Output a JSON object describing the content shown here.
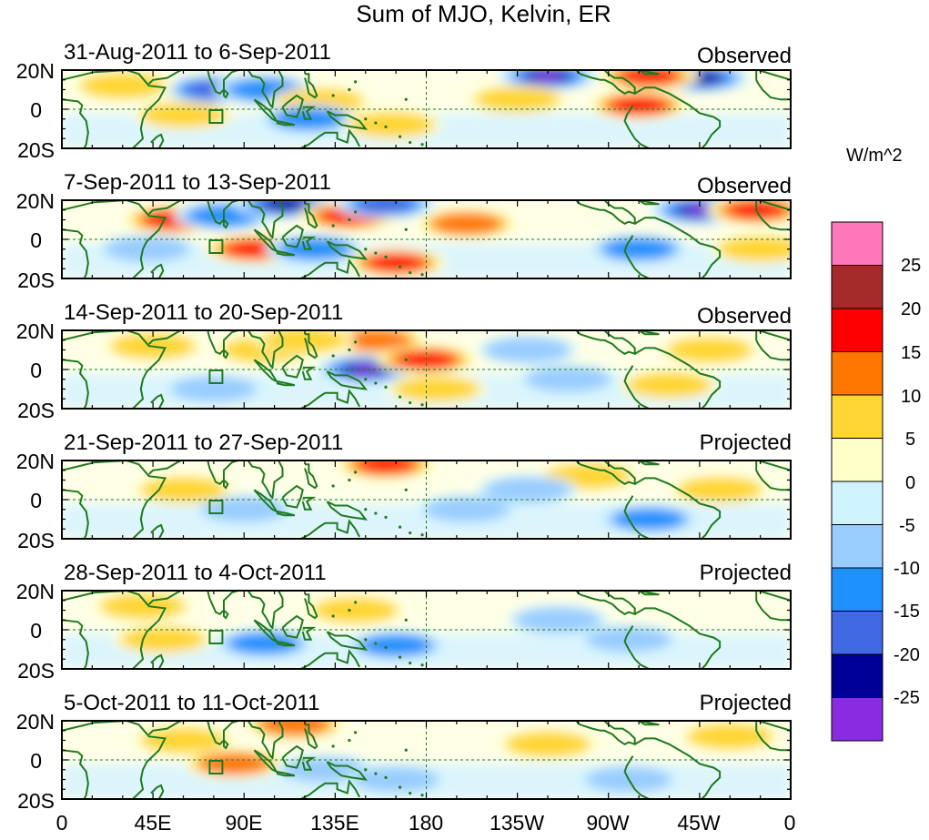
{
  "title": "Sum of MJO, Kelvin, ER",
  "panels": [
    {
      "date_range": "31-Aug-2011 to 6-Sep-2011",
      "status": "Observed"
    },
    {
      "date_range": "7-Sep-2011 to 13-Sep-2011",
      "status": "Observed"
    },
    {
      "date_range": "14-Sep-2011 to 20-Sep-2011",
      "status": "Observed"
    },
    {
      "date_range": "21-Sep-2011 to 27-Sep-2011",
      "status": "Projected"
    },
    {
      "date_range": "28-Sep-2011 to 4-Oct-2011",
      "status": "Projected"
    },
    {
      "date_range": "5-Oct-2011 to 11-Oct-2011",
      "status": "Projected"
    }
  ],
  "y_axis": {
    "labels": [
      "20N",
      "0",
      "20S"
    ]
  },
  "x_axis": {
    "labels": [
      "0",
      "45E",
      "90E",
      "135E",
      "180",
      "135W",
      "90W",
      "45W",
      "0"
    ]
  },
  "colorbar": {
    "units": "W/m^2",
    "labels": [
      "25",
      "20",
      "15",
      "10",
      "5",
      "0",
      "-5",
      "-10",
      "-15",
      "-20",
      "-25"
    ],
    "colors": [
      "#ff77bb",
      "#a52a2a",
      "#ff0000",
      "#ff7700",
      "#ffd633",
      "#ffffc8",
      "#d0f4ff",
      "#99ccff",
      "#1e90ff",
      "#4169e1",
      "#000099",
      "#8a2be2"
    ]
  },
  "chart_data": {
    "type": "heatmap",
    "title": "Sum of MJO, Kelvin, ER",
    "variable_units": "W/m^2",
    "contour_levels": [
      -25,
      -20,
      -15,
      -10,
      -5,
      0,
      5,
      10,
      15,
      20,
      25
    ],
    "lon_range": [
      0,
      360
    ],
    "lat_range": [
      -20,
      20
    ],
    "features": [
      [
        {
          "lon": 60,
          "lat": -3,
          "value": 8
        },
        {
          "lon": 75,
          "lat": 10,
          "value": -15
        },
        {
          "lon": 100,
          "lat": 10,
          "value": -10
        },
        {
          "lon": 128,
          "lat": 4,
          "value": 8
        },
        {
          "lon": 122,
          "lat": -5,
          "value": -12
        },
        {
          "lon": 163,
          "lat": -8,
          "value": 8
        },
        {
          "lon": 240,
          "lat": 17,
          "value": -25
        },
        {
          "lon": 285,
          "lat": 2,
          "value": 17
        },
        {
          "lon": 315,
          "lat": 16,
          "value": -22
        },
        {
          "lon": 290,
          "lat": 17,
          "value": 17
        },
        {
          "lon": 30,
          "lat": 12,
          "value": 8
        },
        {
          "lon": 225,
          "lat": 5,
          "value": 6
        }
      ],
      [
        {
          "lon": 55,
          "lat": 10,
          "value": 15
        },
        {
          "lon": 80,
          "lat": 12,
          "value": -12
        },
        {
          "lon": 110,
          "lat": 18,
          "value": -22
        },
        {
          "lon": 142,
          "lat": 12,
          "value": 15
        },
        {
          "lon": 95,
          "lat": -5,
          "value": 15
        },
        {
          "lon": 125,
          "lat": -5,
          "value": -12
        },
        {
          "lon": 165,
          "lat": -12,
          "value": 18
        },
        {
          "lon": 200,
          "lat": 8,
          "value": 10
        },
        {
          "lon": 315,
          "lat": 15,
          "value": -25
        },
        {
          "lon": 343,
          "lat": 15,
          "value": 15
        },
        {
          "lon": 285,
          "lat": -5,
          "value": -12
        },
        {
          "lon": 42,
          "lat": -5,
          "value": -8
        },
        {
          "lon": 160,
          "lat": 18,
          "value": -18
        },
        {
          "lon": 345,
          "lat": -5,
          "value": 5
        }
      ],
      [
        {
          "lon": 45,
          "lat": 12,
          "value": 7
        },
        {
          "lon": 155,
          "lat": 15,
          "value": 12
        },
        {
          "lon": 150,
          "lat": 0,
          "value": -28
        },
        {
          "lon": 180,
          "lat": 5,
          "value": 15
        },
        {
          "lon": 185,
          "lat": -10,
          "value": 8
        },
        {
          "lon": 75,
          "lat": -10,
          "value": -8
        },
        {
          "lon": 100,
          "lat": 10,
          "value": 5
        },
        {
          "lon": 230,
          "lat": 10,
          "value": -8
        },
        {
          "lon": 300,
          "lat": -8,
          "value": 8
        },
        {
          "lon": 320,
          "lat": 10,
          "value": 8
        },
        {
          "lon": 250,
          "lat": -5,
          "value": -6
        },
        {
          "lon": 120,
          "lat": 15,
          "value": 8
        }
      ],
      [
        {
          "lon": 160,
          "lat": 18,
          "value": 18
        },
        {
          "lon": 90,
          "lat": -5,
          "value": -8
        },
        {
          "lon": 260,
          "lat": 12,
          "value": 6
        },
        {
          "lon": 290,
          "lat": -10,
          "value": -10
        },
        {
          "lon": 60,
          "lat": 5,
          "value": 5
        },
        {
          "lon": 200,
          "lat": -5,
          "value": -6
        },
        {
          "lon": 325,
          "lat": 5,
          "value": 6
        },
        {
          "lon": 230,
          "lat": 5,
          "value": -5
        }
      ],
      [
        {
          "lon": 50,
          "lat": -5,
          "value": 7
        },
        {
          "lon": 100,
          "lat": -7,
          "value": -10
        },
        {
          "lon": 145,
          "lat": 10,
          "value": 6
        },
        {
          "lon": 165,
          "lat": -8,
          "value": -10
        },
        {
          "lon": 245,
          "lat": 5,
          "value": -5
        },
        {
          "lon": 280,
          "lat": -5,
          "value": -5
        },
        {
          "lon": 40,
          "lat": 12,
          "value": 5
        }
      ],
      [
        {
          "lon": 85,
          "lat": -2,
          "value": 12
        },
        {
          "lon": 115,
          "lat": 18,
          "value": 10
        },
        {
          "lon": 130,
          "lat": -5,
          "value": -5
        },
        {
          "lon": 165,
          "lat": -10,
          "value": -6
        },
        {
          "lon": 240,
          "lat": 8,
          "value": 5
        },
        {
          "lon": 330,
          "lat": 12,
          "value": 6
        },
        {
          "lon": 60,
          "lat": 10,
          "value": 5
        },
        {
          "lon": 280,
          "lat": -10,
          "value": -5
        }
      ]
    ]
  }
}
